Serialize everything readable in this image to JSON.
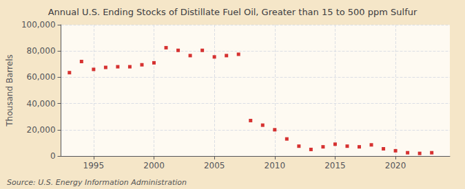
{
  "chart_data": {
    "type": "scatter",
    "title": "Annual U.S. Ending Stocks of Distillate Fuel Oil, Greater than 15 to 500 ppm Sulfur",
    "ylabel": "Thousand Barrels",
    "annotations": [
      "Source: U.S. Energy Information Administration"
    ],
    "x": [
      1993,
      1994,
      1995,
      1996,
      1997,
      1998,
      1999,
      2000,
      2001,
      2002,
      2003,
      2004,
      2005,
      2006,
      2007,
      2008,
      2009,
      2010,
      2011,
      2012,
      2013,
      2014,
      2015,
      2016,
      2017,
      2018,
      2019,
      2020,
      2021,
      2022,
      2023
    ],
    "values": [
      63500,
      72000,
      66000,
      67500,
      68000,
      68000,
      69500,
      71000,
      82500,
      80500,
      76500,
      80500,
      75500,
      76500,
      77500,
      27000,
      23500,
      20000,
      13000,
      7500,
      5000,
      7000,
      9000,
      7500,
      7000,
      8500,
      5500,
      4000,
      2500,
      2000,
      2500
    ],
    "color": "#cc0000",
    "marker": "square",
    "xlim": [
      1992.3,
      2024.5
    ],
    "xticks": [
      1995,
      2000,
      2005,
      2010,
      2015,
      2020
    ],
    "ylim": [
      0,
      100000
    ],
    "yticks": [
      0,
      {
        "value": 20000,
        "label": "20,000"
      },
      {
        "value": 40000,
        "label": "40,000"
      },
      {
        "value": 60000,
        "label": "60,000"
      },
      {
        "value": 80000,
        "label": "80,000"
      },
      {
        "value": 100000,
        "label": "100,000"
      }
    ],
    "grid": true
  }
}
